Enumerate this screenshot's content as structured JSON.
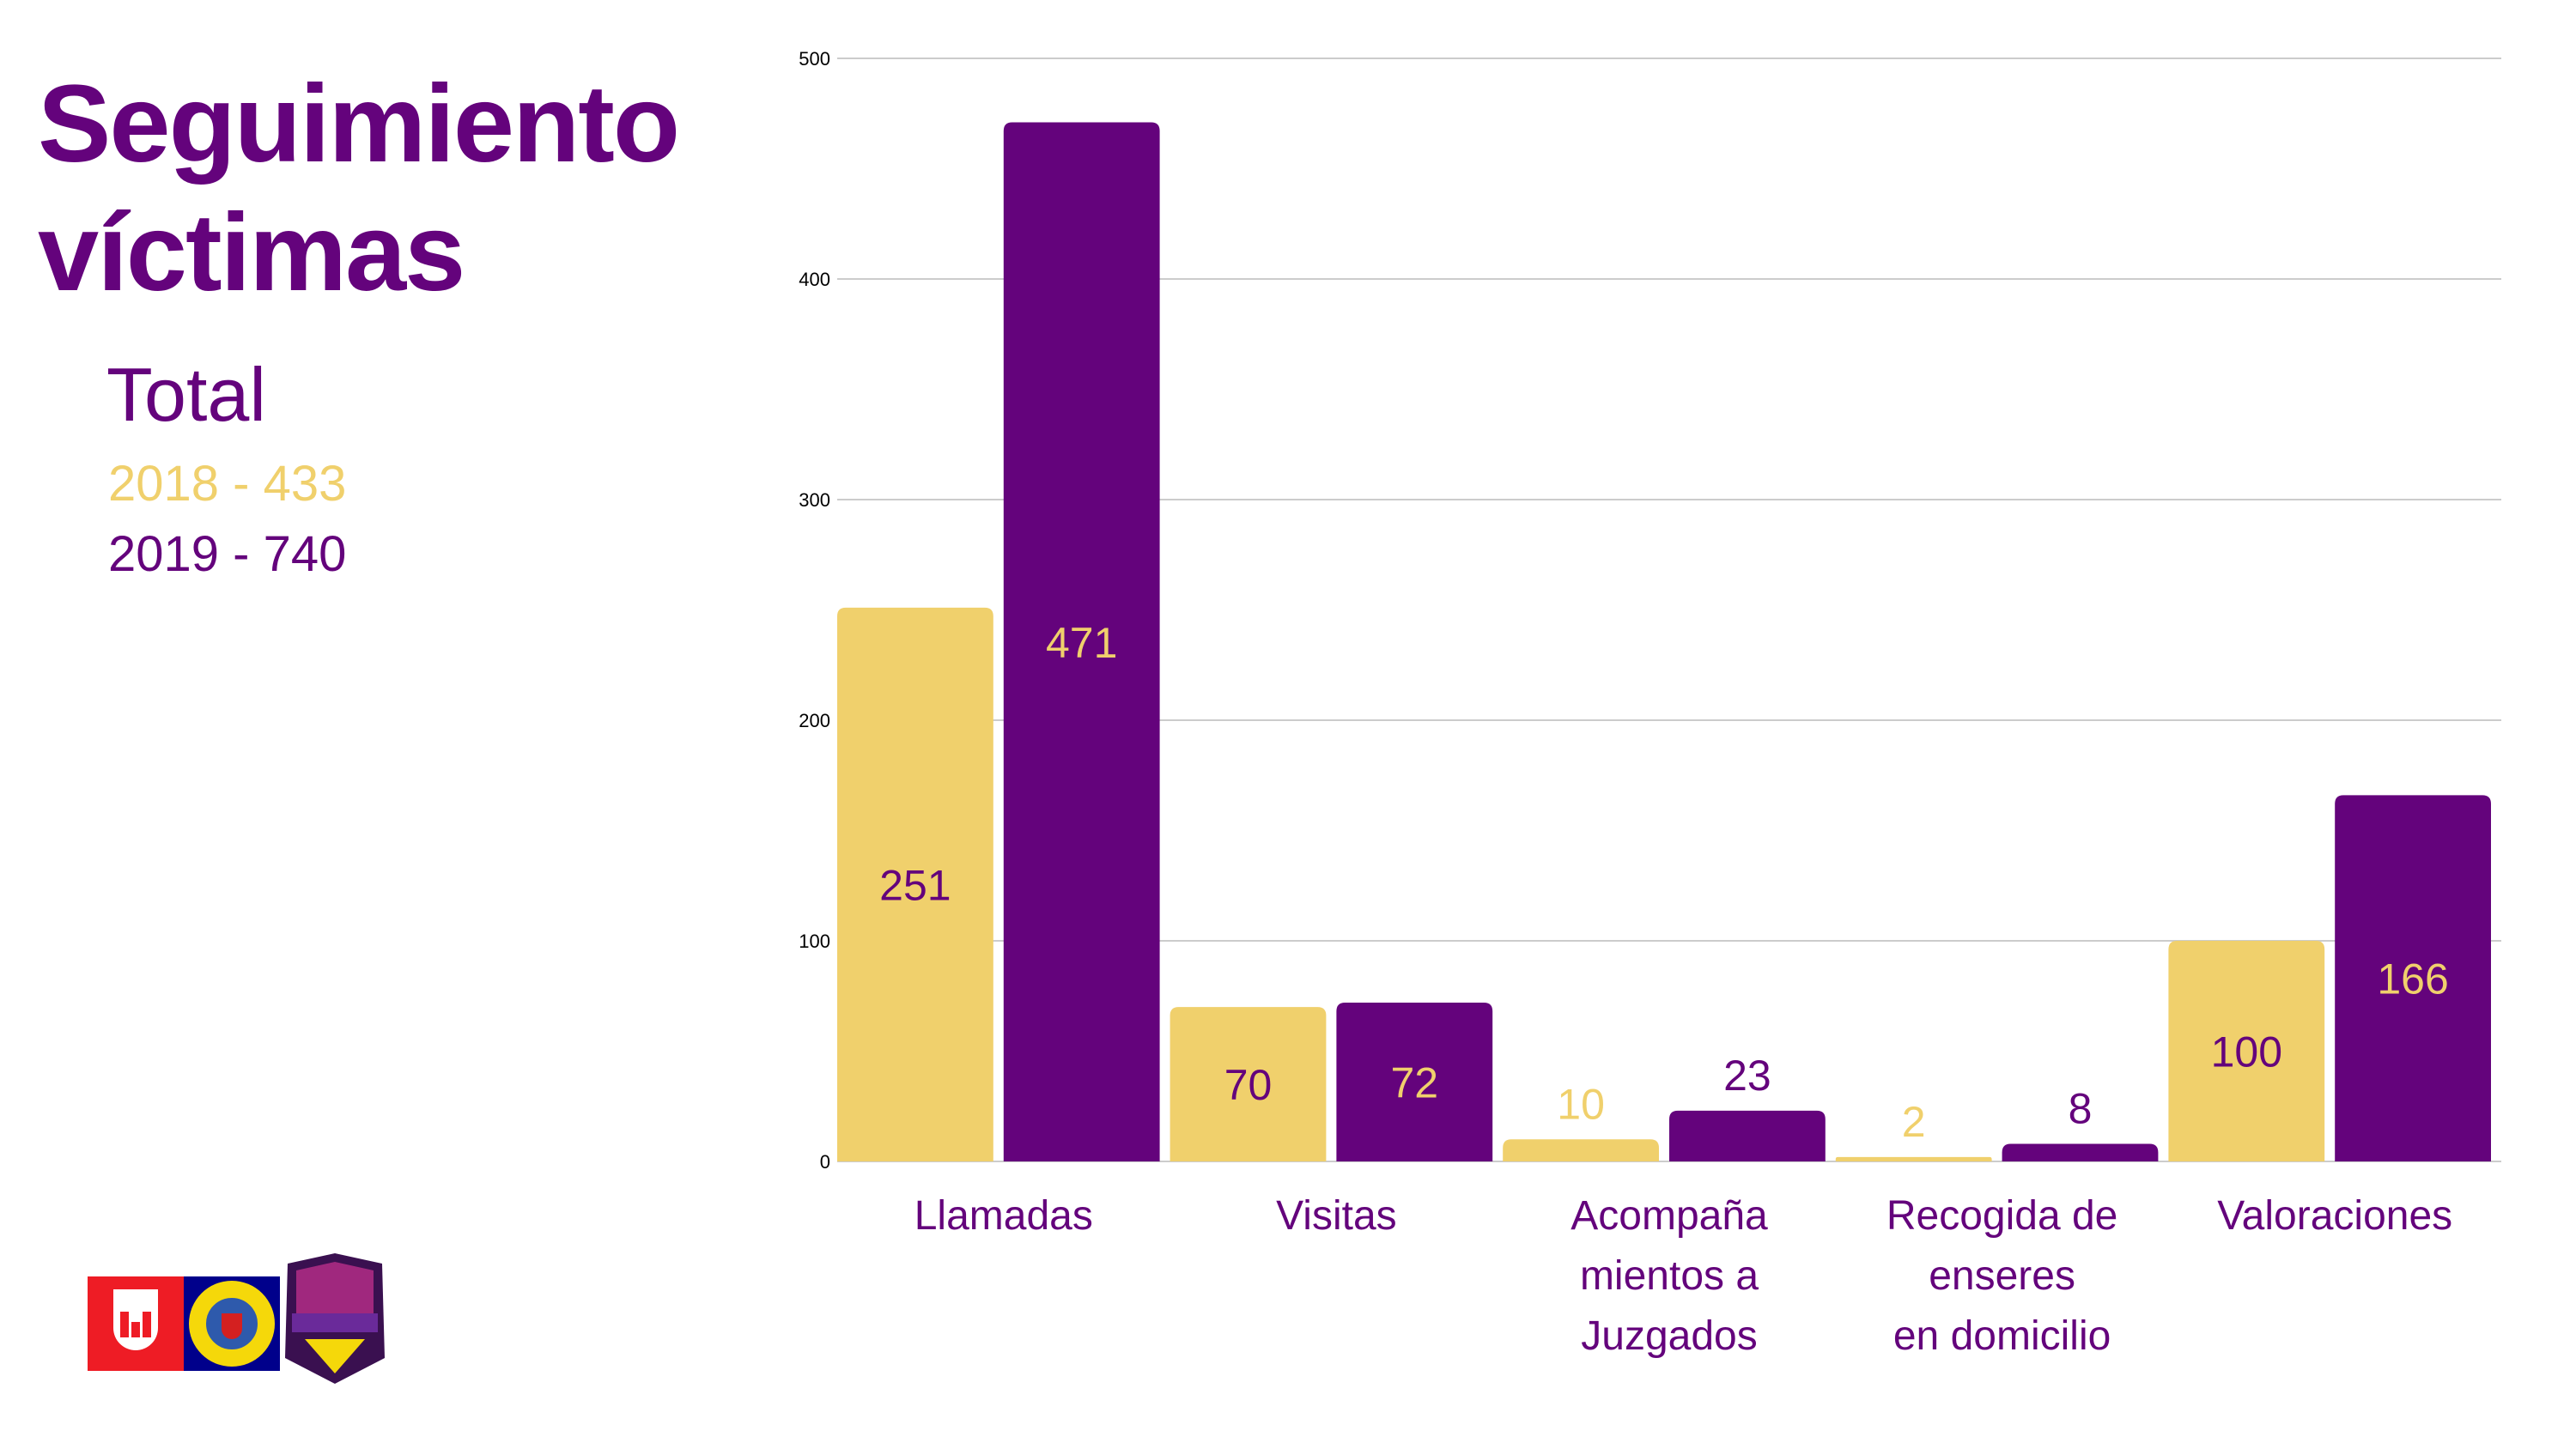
{
  "title_line1": "Seguimiento",
  "title_line2": "víctimas",
  "legend": {
    "heading": "Total",
    "items": [
      {
        "label": "2018 - 433",
        "color": "#F0D06C"
      },
      {
        "label": "2019 - 740",
        "color": "#64037C"
      }
    ]
  },
  "chart_data": {
    "type": "bar",
    "categories": [
      [
        "Llamadas"
      ],
      [
        "Visitas"
      ],
      [
        "Acompaña",
        "mientos a",
        "Juzgados"
      ],
      [
        "Recogida de",
        "enseres",
        "en domicilio"
      ],
      [
        "Valoraciones"
      ]
    ],
    "series": [
      {
        "name": "2018",
        "color": "#F0D06C",
        "label_color": "#64037C",
        "values": [
          251,
          70,
          10,
          2,
          100
        ]
      },
      {
        "name": "2019",
        "color": "#64037C",
        "label_color": "#F0D06C",
        "values": [
          471,
          72,
          23,
          8,
          166
        ]
      }
    ],
    "ylim": [
      0,
      500
    ],
    "yticks": [
      0,
      100,
      200,
      300,
      400,
      500
    ],
    "grid": true
  },
  "logos": {
    "ayuntamiento": "Ayuntamiento de Elda",
    "policia": "POLICIA LOCAL ELDA",
    "unidad": "UNIDAD VIOLENCIA DE GÉNERO ELDA"
  }
}
